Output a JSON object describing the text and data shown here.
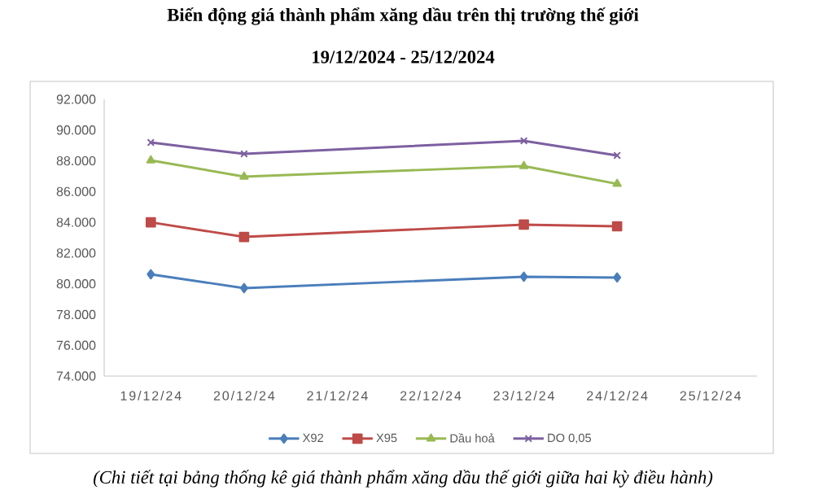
{
  "chart_data": {
    "type": "line",
    "title": "Biến động giá thành phẩm xăng dầu trên thị trường thế giới",
    "subtitle": "19/12/2024 - 25/12/2024",
    "x": [
      "2024-12-19",
      "2024-12-20",
      "2024-12-23",
      "2024-12-24"
    ],
    "series": [
      {
        "name": "X92",
        "color": "#4a7ebb",
        "marker": "diamond",
        "values": [
          80620,
          79720,
          80460,
          80410
        ]
      },
      {
        "name": "X95",
        "color": "#be4b48",
        "marker": "square",
        "values": [
          84000,
          83050,
          83850,
          83740
        ]
      },
      {
        "name": "Dầu hoả",
        "color": "#98b954",
        "marker": "triangle",
        "values": [
          88030,
          86970,
          87660,
          86500
        ]
      },
      {
        "name": "DO 0,05",
        "color": "#7d60a0",
        "marker": "cross",
        "values": [
          89190,
          88450,
          89300,
          88350
        ]
      }
    ],
    "xlim": [
      "2024-12-18T12:00",
      "2024-12-25T12:00"
    ],
    "xticks": [
      {
        "value": "2024-12-19",
        "label": "19/12/24"
      },
      {
        "value": "2024-12-20",
        "label": "20/12/24"
      },
      {
        "value": "2024-12-21",
        "label": "21/12/24"
      },
      {
        "value": "2024-12-22",
        "label": "22/12/24"
      },
      {
        "value": "2024-12-23",
        "label": "23/12/24"
      },
      {
        "value": "2024-12-24",
        "label": "24/12/24"
      },
      {
        "value": "2024-12-25",
        "label": "25/12/24"
      }
    ],
    "ylim": [
      74000,
      92000
    ],
    "yticks": [
      {
        "value": 74000,
        "label": "74.000"
      },
      {
        "value": 76000,
        "label": "76.000"
      },
      {
        "value": 78000,
        "label": "78.000"
      },
      {
        "value": 80000,
        "label": "80.000"
      },
      {
        "value": 82000,
        "label": "82.000"
      },
      {
        "value": 84000,
        "label": "84.000"
      },
      {
        "value": 86000,
        "label": "86.000"
      },
      {
        "value": 88000,
        "label": "88.000"
      },
      {
        "value": 90000,
        "label": "90.000"
      },
      {
        "value": 92000,
        "label": "92.000"
      }
    ],
    "grid": false,
    "legend": "bottom",
    "line_style": "solid",
    "annotations": [
      "(Chi tiết tại bảng thống kê giá thành phẩm xăng dầu thế giới giữa hai kỳ điều hành)"
    ]
  }
}
